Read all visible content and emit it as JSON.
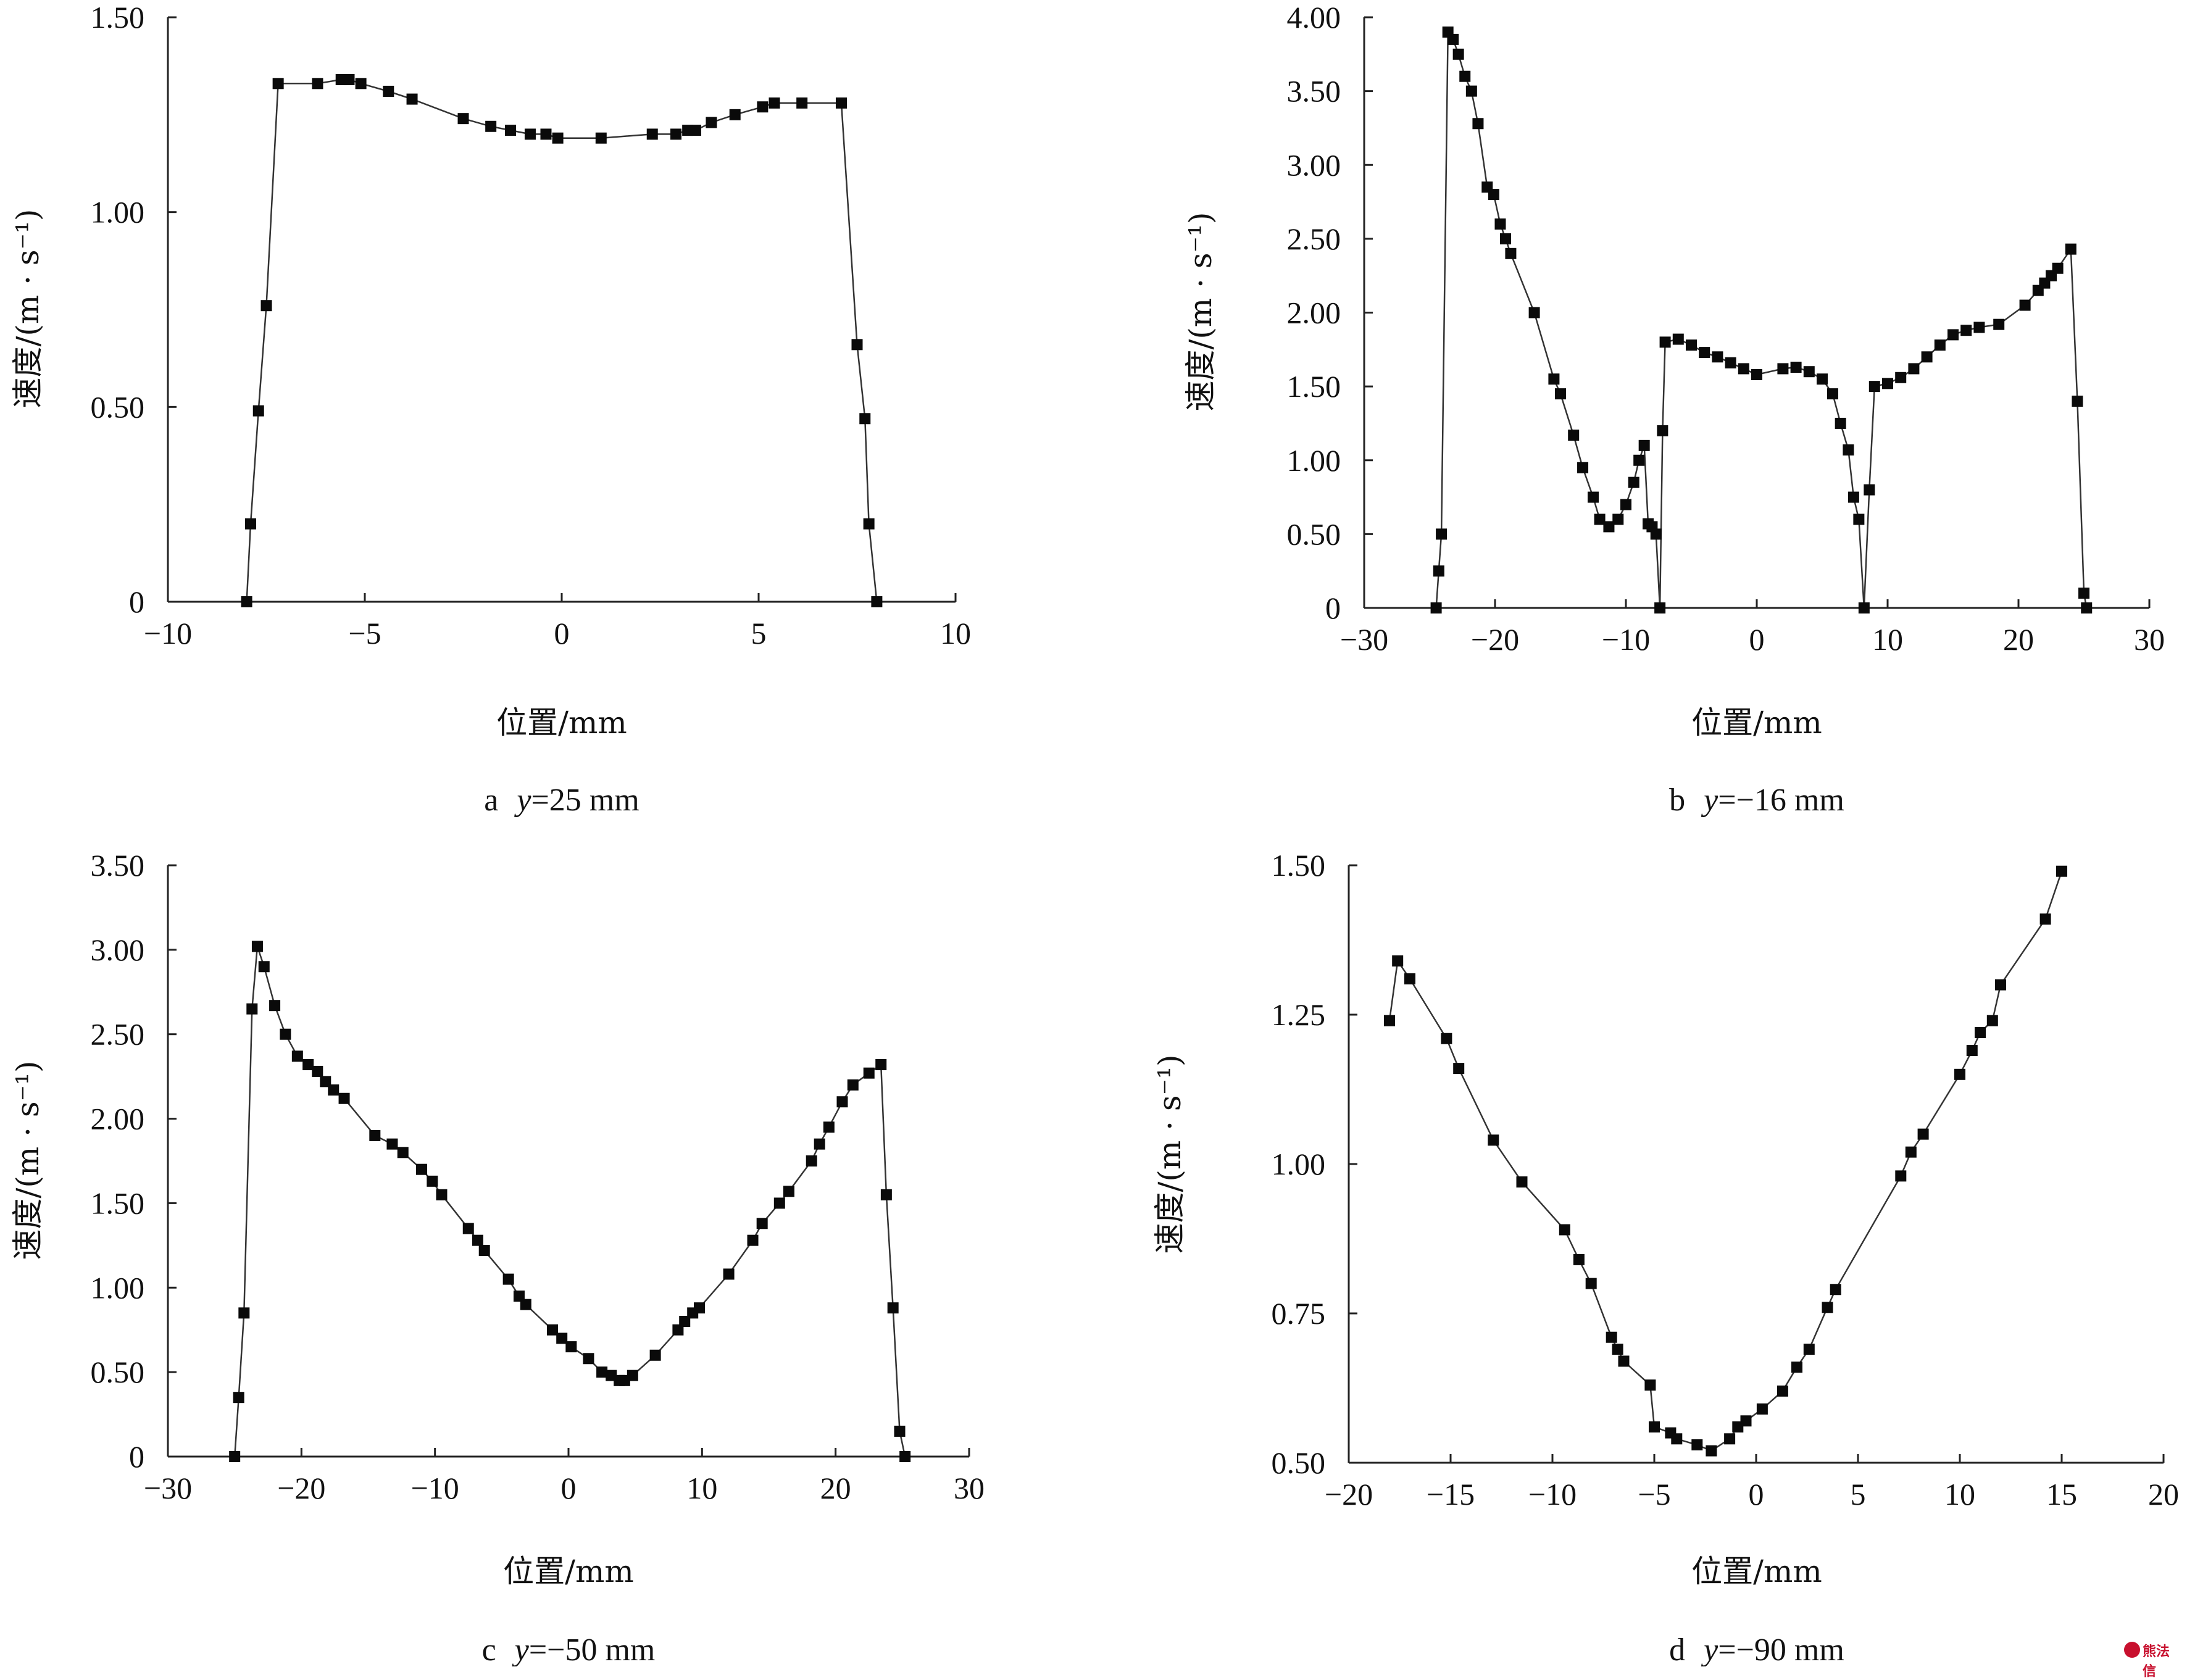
{
  "watermark": {
    "text": "熊法信",
    "color": "#c8102e"
  },
  "chart_data": [
    {
      "type": "line",
      "caption_prefix": "a",
      "caption_var": "y",
      "caption_value": "=25 mm",
      "xlabel": "位置/mm",
      "ylabel": "速度/(m · s⁻¹)",
      "xlim": [
        -10,
        10
      ],
      "ylim": [
        0,
        1.5
      ],
      "xticks": [
        -10,
        -5,
        0,
        5,
        10
      ],
      "xtick_labels": [
        "−10",
        "−5",
        "0",
        "5",
        "10"
      ],
      "yticks": [
        0,
        0.5,
        1.0,
        1.5
      ],
      "ytick_labels": [
        "0",
        "0.50",
        "1.00",
        "1.50"
      ],
      "grid": false,
      "marker": "square",
      "x": [
        -8.0,
        -7.9,
        -7.7,
        -7.5,
        -7.2,
        -6.2,
        -5.6,
        -5.4,
        -5.1,
        -4.4,
        -3.8,
        -2.5,
        -1.8,
        -1.3,
        -0.8,
        -0.4,
        -0.1,
        1.0,
        2.3,
        2.9,
        3.2,
        3.4,
        3.8,
        4.4,
        5.1,
        5.4,
        6.1,
        7.1,
        7.5,
        7.7,
        7.8,
        8.0
      ],
      "y": [
        0.0,
        0.2,
        0.49,
        0.76,
        1.33,
        1.33,
        1.34,
        1.34,
        1.33,
        1.31,
        1.29,
        1.24,
        1.22,
        1.21,
        1.2,
        1.2,
        1.19,
        1.19,
        1.2,
        1.2,
        1.21,
        1.21,
        1.23,
        1.25,
        1.27,
        1.28,
        1.28,
        1.28,
        0.66,
        0.47,
        0.2,
        0.0
      ]
    },
    {
      "type": "line",
      "caption_prefix": "b",
      "caption_var": "y",
      "caption_value": "=−16 mm",
      "xlabel": "位置/mm",
      "ylabel": "速度/(m · s⁻¹)",
      "xlim": [
        -30,
        30
      ],
      "ylim": [
        0,
        4.0
      ],
      "xticks": [
        -30,
        -20,
        -10,
        0,
        10,
        20,
        30
      ],
      "xtick_labels": [
        "−30",
        "−20",
        "−10",
        "0",
        "10",
        "20",
        "30"
      ],
      "yticks": [
        0,
        0.5,
        1.0,
        1.5,
        2.0,
        2.5,
        3.0,
        3.5,
        4.0
      ],
      "ytick_labels": [
        "0",
        "0.50",
        "1.00",
        "1.50",
        "2.00",
        "2.50",
        "3.00",
        "3.50",
        "4.00"
      ],
      "grid": false,
      "marker": "square",
      "x": [
        -24.5,
        -24.3,
        -24.1,
        -23.6,
        -23.2,
        -22.8,
        -22.3,
        -21.8,
        -21.3,
        -20.6,
        -20.1,
        -19.6,
        -19.2,
        -18.8,
        -17.0,
        -15.5,
        -15.0,
        -14.0,
        -13.3,
        -12.5,
        -12.0,
        -11.3,
        -10.6,
        -10.0,
        -9.4,
        -9.0,
        -8.6,
        -8.3,
        -8.0,
        -7.7,
        -7.4,
        -7.2,
        -7.0,
        -6.0,
        -5.0,
        -4.0,
        -3.0,
        -2.0,
        -1.0,
        0.0,
        2.0,
        3.0,
        4.0,
        5.0,
        5.8,
        6.4,
        7.0,
        7.4,
        7.8,
        8.2,
        8.6,
        9.0,
        10.0,
        11.0,
        12.0,
        13.0,
        14.0,
        15.0,
        16.0,
        17.0,
        18.5,
        20.5,
        21.5,
        22.0,
        22.5,
        23.0,
        24.0,
        24.5,
        25.0,
        25.2
      ],
      "y": [
        0.0,
        0.25,
        0.5,
        3.9,
        3.85,
        3.75,
        3.6,
        3.5,
        3.28,
        2.85,
        2.8,
        2.6,
        2.5,
        2.4,
        2.0,
        1.55,
        1.45,
        1.17,
        0.95,
        0.75,
        0.6,
        0.55,
        0.6,
        0.7,
        0.85,
        1.0,
        1.1,
        0.57,
        0.55,
        0.5,
        0.0,
        1.2,
        1.8,
        1.82,
        1.78,
        1.73,
        1.7,
        1.66,
        1.62,
        1.58,
        1.62,
        1.63,
        1.6,
        1.55,
        1.45,
        1.25,
        1.07,
        0.75,
        0.6,
        0.0,
        0.8,
        1.5,
        1.52,
        1.56,
        1.62,
        1.7,
        1.78,
        1.85,
        1.88,
        1.9,
        1.92,
        2.05,
        2.15,
        2.2,
        2.25,
        2.3,
        2.43,
        1.4,
        0.1,
        0.0
      ]
    },
    {
      "type": "line",
      "caption_prefix": "c",
      "caption_var": "y",
      "caption_value": "=−50 mm",
      "xlabel": "位置/mm",
      "ylabel": "速度/(m · s⁻¹)",
      "xlim": [
        -30,
        30
      ],
      "ylim": [
        0,
        3.5
      ],
      "xticks": [
        -30,
        -20,
        -10,
        0,
        10,
        20,
        30
      ],
      "xtick_labels": [
        "−30",
        "−20",
        "−10",
        "0",
        "10",
        "20",
        "30"
      ],
      "yticks": [
        0,
        0.5,
        1.0,
        1.5,
        2.0,
        2.5,
        3.0,
        3.5
      ],
      "ytick_labels": [
        "0",
        "0.50",
        "1.00",
        "1.50",
        "2.00",
        "2.50",
        "3.00",
        "3.50"
      ],
      "grid": false,
      "marker": "square",
      "x": [
        -25.0,
        -24.7,
        -24.3,
        -23.7,
        -23.3,
        -22.8,
        -22.0,
        -21.2,
        -20.3,
        -19.5,
        -18.8,
        -18.2,
        -17.6,
        -16.8,
        -14.5,
        -13.2,
        -12.4,
        -11.0,
        -10.2,
        -9.5,
        -7.5,
        -6.8,
        -6.3,
        -4.5,
        -3.7,
        -3.2,
        -1.2,
        -0.5,
        0.2,
        1.5,
        2.5,
        3.2,
        3.8,
        4.2,
        4.8,
        6.5,
        8.2,
        8.7,
        9.3,
        9.8,
        12.0,
        13.8,
        14.5,
        15.8,
        16.5,
        18.2,
        18.8,
        19.5,
        20.5,
        21.3,
        22.5,
        23.4,
        23.8,
        24.3,
        24.8,
        25.2
      ],
      "y": [
        0.0,
        0.35,
        0.85,
        2.65,
        3.02,
        2.9,
        2.67,
        2.5,
        2.37,
        2.32,
        2.28,
        2.22,
        2.17,
        2.12,
        1.9,
        1.85,
        1.8,
        1.7,
        1.63,
        1.55,
        1.35,
        1.28,
        1.22,
        1.05,
        0.95,
        0.9,
        0.75,
        0.7,
        0.65,
        0.58,
        0.5,
        0.48,
        0.45,
        0.45,
        0.48,
        0.6,
        0.75,
        0.8,
        0.85,
        0.88,
        1.08,
        1.28,
        1.38,
        1.5,
        1.57,
        1.75,
        1.85,
        1.95,
        2.1,
        2.2,
        2.27,
        2.32,
        1.55,
        0.88,
        0.15,
        0.0
      ]
    },
    {
      "type": "line",
      "caption_prefix": "d",
      "caption_var": "y",
      "caption_value": "=−90 mm",
      "xlabel": "位置/mm",
      "ylabel": "速度/(m · s⁻¹)",
      "xlim": [
        -20,
        20
      ],
      "ylim": [
        0.5,
        1.5
      ],
      "xticks": [
        -20,
        -15,
        -10,
        -5,
        0,
        5,
        10,
        15,
        20
      ],
      "xtick_labels": [
        "−20",
        "−15",
        "−10",
        "−5",
        "0",
        "5",
        "10",
        "15",
        "20"
      ],
      "yticks": [
        0.5,
        0.75,
        1.0,
        1.25,
        1.5
      ],
      "ytick_labels": [
        "0.50",
        "0.75",
        "1.00",
        "1.25",
        "1.50"
      ],
      "grid": false,
      "marker": "square",
      "x": [
        -18.0,
        -17.6,
        -17.0,
        -15.2,
        -14.6,
        -12.9,
        -11.5,
        -9.4,
        -8.7,
        -8.1,
        -7.1,
        -6.8,
        -6.5,
        -5.2,
        -5.0,
        -4.2,
        -3.9,
        -2.9,
        -2.2,
        -1.3,
        -0.9,
        -0.5,
        0.3,
        1.3,
        2.0,
        2.6,
        3.5,
        3.9,
        7.1,
        7.6,
        8.2,
        10.0,
        10.6,
        11.0,
        11.6,
        12.0,
        14.2,
        15.0
      ],
      "y": [
        1.24,
        1.34,
        1.31,
        1.21,
        1.16,
        1.04,
        0.97,
        0.89,
        0.84,
        0.8,
        0.71,
        0.69,
        0.67,
        0.63,
        0.56,
        0.55,
        0.54,
        0.53,
        0.52,
        0.54,
        0.56,
        0.57,
        0.59,
        0.62,
        0.66,
        0.69,
        0.76,
        0.79,
        0.98,
        1.02,
        1.05,
        1.15,
        1.19,
        1.22,
        1.24,
        1.3,
        1.41,
        1.49
      ]
    }
  ]
}
